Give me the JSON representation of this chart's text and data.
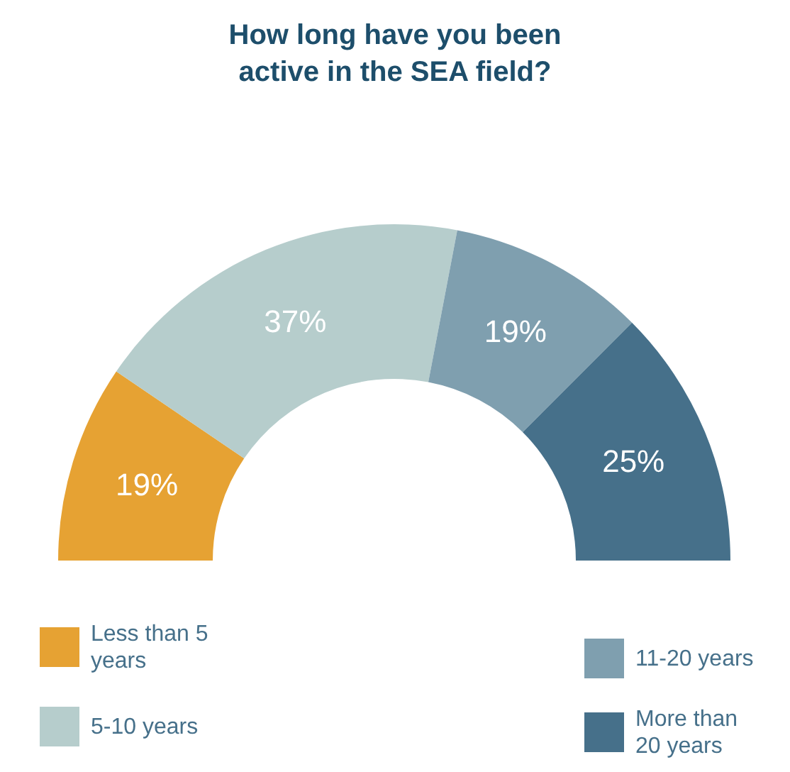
{
  "chart_data": {
    "type": "donut",
    "title": "How long have you been active in the SEA field?",
    "categories": [
      "Less than 5 years",
      "5-10 years",
      "11-20 years",
      "More than 20 years"
    ],
    "values": [
      19,
      37,
      19,
      25
    ],
    "colors": [
      "#e6a233",
      "#b6cdcc",
      "#7f9faf",
      "#46708a"
    ],
    "value_labels": [
      "19%",
      "37%",
      "19%",
      "25%"
    ],
    "legend": "bottom"
  }
}
